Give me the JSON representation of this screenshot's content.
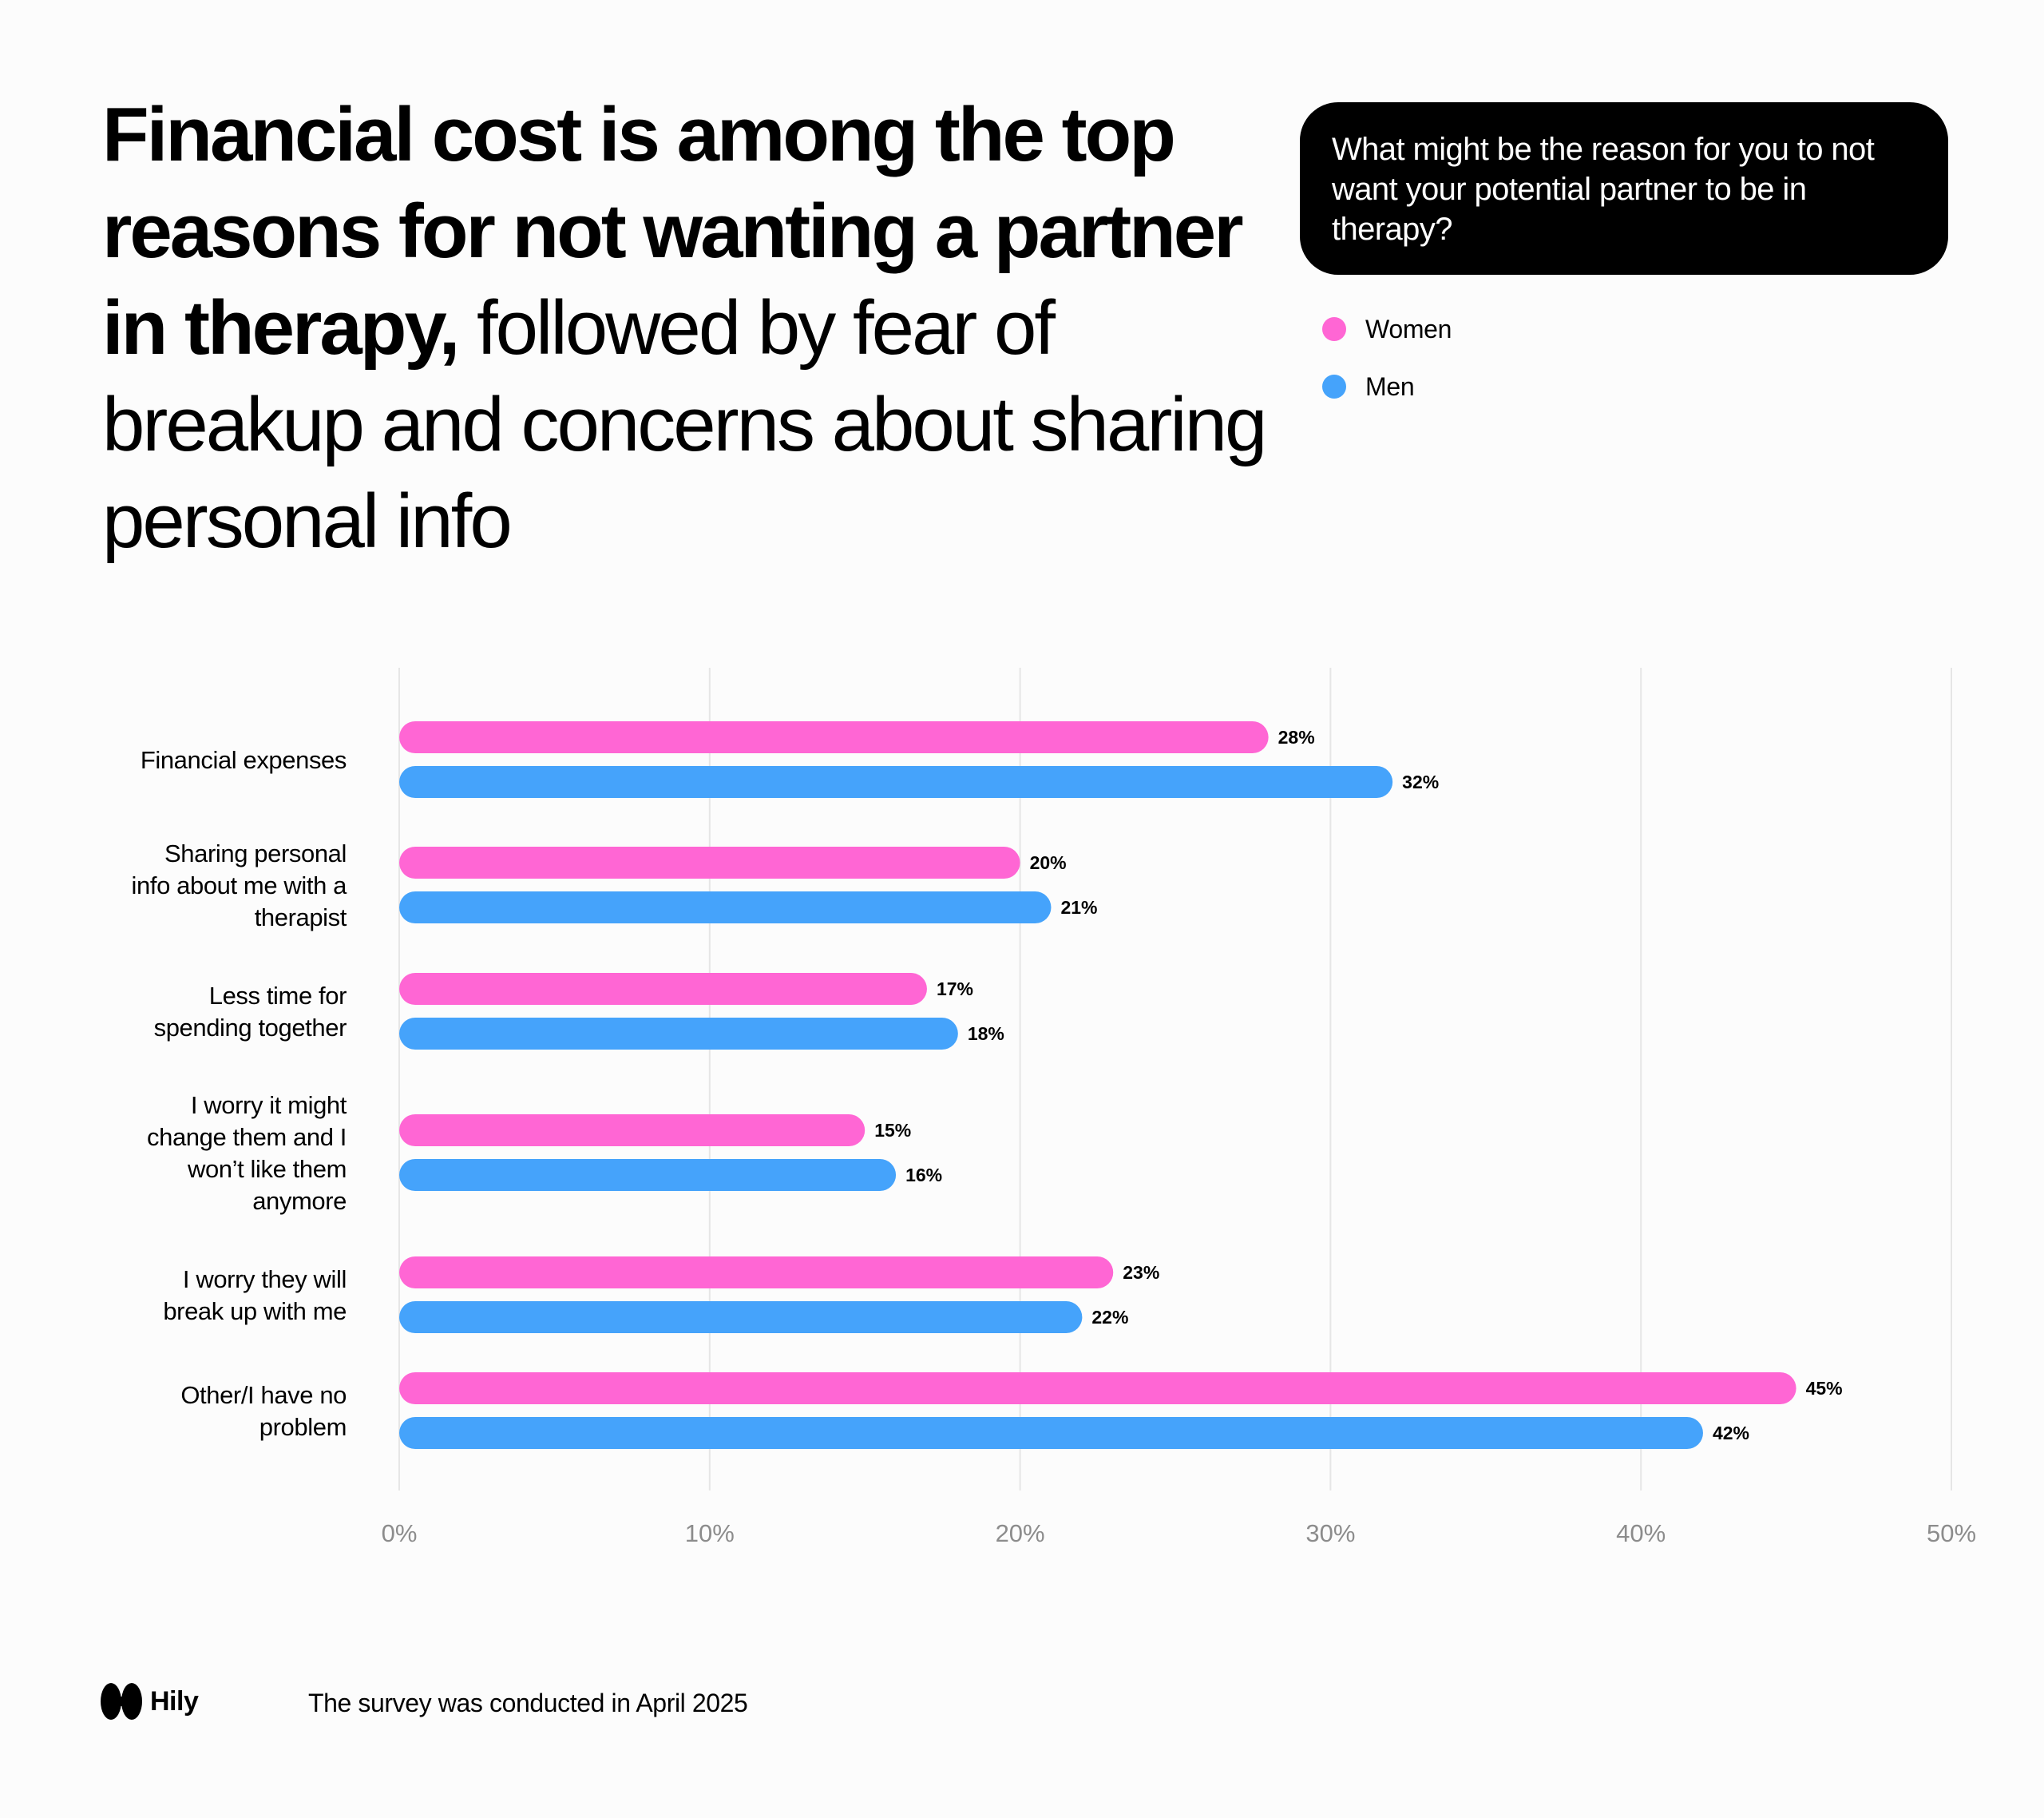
{
  "headline": {
    "bold": "Financial cost is among the top reasons for not wanting a partner in therapy,",
    "regular": " followed by fear of breakup and concerns about sharing personal info"
  },
  "question": "What might be the reason for you to not want your potential partner to be in therapy?",
  "legend": [
    {
      "label": "Women",
      "color": "#ff66d4"
    },
    {
      "label": "Men",
      "color": "#45a3fb"
    }
  ],
  "chart_data": {
    "type": "bar",
    "orientation": "horizontal",
    "categories": [
      [
        "Financial expenses"
      ],
      [
        "Sharing personal",
        "info about me with a",
        "therapist"
      ],
      [
        "Less time for",
        "spending together"
      ],
      [
        "I worry it might",
        "change them and I",
        "won’t like them",
        "anymore"
      ],
      [
        "I worry they will",
        "break up with me"
      ],
      [
        "Other/I have no",
        "problem"
      ]
    ],
    "series": [
      {
        "name": "Women",
        "color": "#ff66d4",
        "values": [
          28,
          20,
          17,
          15,
          23,
          45
        ],
        "labels": [
          "28%",
          "20%",
          "17%",
          "15%",
          "23%",
          "45%"
        ]
      },
      {
        "name": "Men",
        "color": "#45a3fb",
        "values": [
          32,
          21,
          18,
          16,
          22,
          42
        ],
        "labels": [
          "32%",
          "21%",
          "18%",
          "16%",
          "22%",
          "42%"
        ]
      }
    ],
    "xlim": [
      0,
      50
    ],
    "xticks": [
      0,
      10,
      20,
      30,
      40,
      50
    ],
    "xtick_labels": [
      "0%",
      "10%",
      "20%",
      "30%",
      "40%",
      "50%"
    ],
    "grid": "vertical",
    "legend_placement": "top-right"
  },
  "footer": {
    "brand": "Hily",
    "note": "The survey was conducted in April 2025"
  }
}
